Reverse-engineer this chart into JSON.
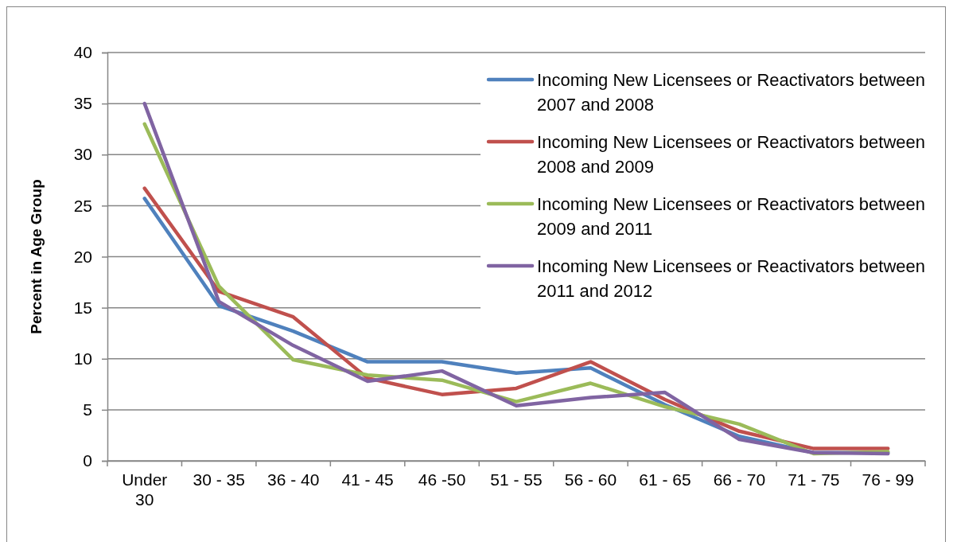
{
  "chart_data": {
    "type": "line",
    "ylabel": "Percent in Age Group",
    "categories": [
      "Under 30",
      "30 - 35",
      "36 - 40",
      "41 - 45",
      "46 -50",
      "51 - 55",
      "56 - 60",
      "61 - 65",
      "66 - 70",
      "71 - 75",
      "76 - 99"
    ],
    "series": [
      {
        "name": "Incoming New Licensees or Reactivators between 2007 and 2008",
        "color": "#4f81bd",
        "values": [
          25.7,
          15.2,
          12.7,
          9.7,
          9.7,
          8.6,
          9.1,
          5.5,
          2.4,
          0.8,
          0.8
        ]
      },
      {
        "name": "Incoming New Licensees or Reactivators between 2008 and 2009",
        "color": "#c0504d",
        "values": [
          26.7,
          16.6,
          14.1,
          8.1,
          6.5,
          7.1,
          9.7,
          6.0,
          2.9,
          1.2,
          1.2
        ]
      },
      {
        "name": "Incoming New Licensees or Reactivators between 2009 and 2011",
        "color": "#9bbb59",
        "values": [
          33.0,
          17.1,
          9.9,
          8.4,
          7.9,
          5.8,
          7.6,
          5.3,
          3.6,
          0.7,
          0.9
        ]
      },
      {
        "name": "Incoming New Licensees or Reactivators between 2011 and 2012",
        "color": "#8064a2",
        "values": [
          35.0,
          15.6,
          11.3,
          7.8,
          8.8,
          5.4,
          6.2,
          6.7,
          2.1,
          0.8,
          0.7
        ]
      }
    ],
    "ylim": [
      0,
      40
    ],
    "yticks": [
      0,
      5,
      10,
      15,
      20,
      25,
      30,
      35,
      40
    ],
    "grid": "y",
    "legend": "top right"
  }
}
